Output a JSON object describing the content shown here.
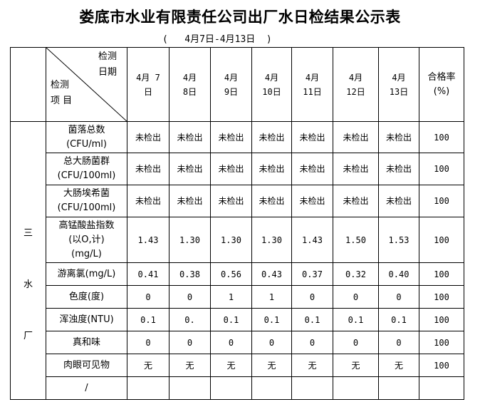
{
  "title": "娄底市水业有限责任公司出厂水日检结果公示表",
  "subtitle": "(   4月7日-4月13日  )",
  "header": {
    "top_right": [
      "检测",
      "日期"
    ],
    "bottom_left": [
      "检测",
      "项 目"
    ],
    "dates": [
      [
        "4月 7",
        "日"
      ],
      [
        "4月",
        "8日"
      ],
      [
        "4月",
        "9日"
      ],
      [
        "4月",
        "10日"
      ],
      [
        "4月",
        "11日"
      ],
      [
        "4月",
        "12日"
      ],
      [
        "4月",
        "13日"
      ]
    ],
    "rate": [
      "合格率",
      "(%)"
    ]
  },
  "plant": [
    "三",
    "水",
    "厂"
  ],
  "rows": [
    {
      "item": [
        "菌落总数",
        "(CFU/ml)"
      ],
      "values": [
        "未检出",
        "未检出",
        "未检出",
        "未检出",
        "未检出",
        "未检出",
        "未检出"
      ],
      "rate": "100"
    },
    {
      "item": [
        "总大肠菌群",
        "(CFU/100ml)"
      ],
      "values": [
        "未检出",
        "未检出",
        "未检出",
        "未检出",
        "未检出",
        "未检出",
        "未检出"
      ],
      "rate": "100"
    },
    {
      "item": [
        "大肠埃希菌",
        "(CFU/100ml)"
      ],
      "values": [
        "未检出",
        "未检出",
        "未检出",
        "未检出",
        "未检出",
        "未检出",
        "未检出"
      ],
      "rate": "100"
    },
    {
      "item": [
        "高锰酸盐指数",
        "(以O,计)",
        "(mg/L)"
      ],
      "values": [
        "1.43",
        "1.30",
        "1.30",
        "1.30",
        "1.43",
        "1.50",
        "1.53"
      ],
      "rate": "100"
    },
    {
      "item": [
        "游离氯(mg/L)"
      ],
      "values": [
        "0.41",
        "0.38",
        "0.56",
        "0.43",
        "0.37",
        "0.32",
        "0.40"
      ],
      "rate": "100"
    },
    {
      "item": [
        "色度(度)"
      ],
      "values": [
        "0",
        "0",
        "1",
        "1",
        "0",
        "0",
        "0"
      ],
      "rate": "100"
    },
    {
      "item": [
        "浑浊度(NTU)"
      ],
      "values": [
        "0.1",
        "0.",
        "0.1",
        "0.1",
        "0.1",
        "0.1",
        "0.1"
      ],
      "rate": "100"
    },
    {
      "item": [
        "真和味"
      ],
      "values": [
        "0",
        "0",
        "0",
        "0",
        "0",
        "0",
        "0"
      ],
      "rate": "100"
    },
    {
      "item": [
        "肉眼可见物"
      ],
      "values": [
        "无",
        "无",
        "无",
        "无",
        "无",
        "无",
        "无"
      ],
      "rate": "100"
    },
    {
      "item": [
        "/"
      ],
      "values": [
        "",
        "",
        "",
        "",
        "",
        "",
        ""
      ],
      "rate": ""
    }
  ]
}
